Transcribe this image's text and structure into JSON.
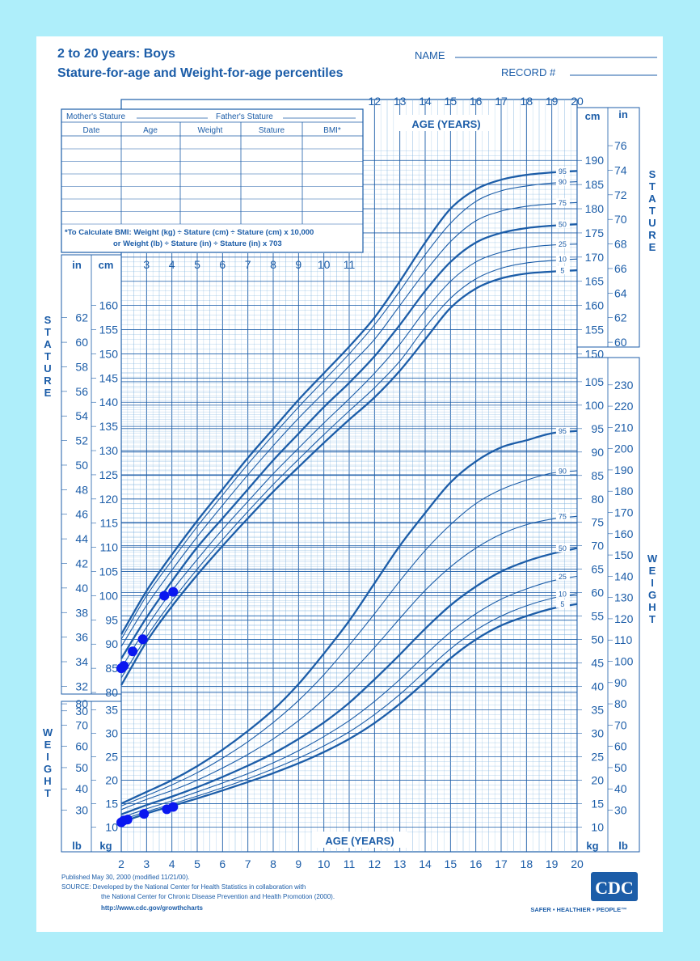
{
  "header": {
    "title_line1": "2 to 20 years: Boys",
    "title_line2": "Stature-for-age and Weight-for-age percentiles",
    "name_label": "NAME",
    "record_label": "RECORD #"
  },
  "record_table": {
    "mothers_stature": "Mother's Stature",
    "fathers_stature": "Father's Stature",
    "columns": [
      "Date",
      "Age",
      "Weight",
      "Stature",
      "BMI*"
    ],
    "bmi_note_line1": "*To Calculate BMI: Weight (kg) ÷ Stature (cm) ÷ Stature (cm) x 10,000",
    "bmi_note_line2": "or Weight (lb) ÷ Stature (in) ÷ Stature (in) x 703"
  },
  "side_labels": {
    "stature": "STATURE",
    "weight": "WEIGHT"
  },
  "footer": {
    "published": "Published May 30, 2000 (modified 11/21/00).",
    "source_line1": "SOURCE: Developed by the National Center for Health Statistics in collaboration with",
    "source_line2": "the National Center for Chronic Disease Prevention and Health Promotion (2000).",
    "url": "http://www.cdc.gov/growthcharts",
    "logo": "CDC",
    "tagline": "SAFER • HEALTHIER • PEOPLE™"
  },
  "colors": {
    "ink": "#1c5da8",
    "grid": "#7fb2dd",
    "points": "#0a17f0",
    "page_border": "#aeeefa"
  },
  "chart_data": [
    {
      "type": "line",
      "name": "stature-for-age",
      "x_axis_label": "AGE (YEARS)",
      "x_range": [
        2,
        20
      ],
      "x_ticks": [
        2,
        3,
        4,
        5,
        6,
        7,
        8,
        9,
        10,
        11,
        12,
        13,
        14,
        15,
        16,
        17,
        18,
        19,
        20
      ],
      "y_unit_left": "cm",
      "y_unit_inch": "in",
      "y_range_cm": [
        77,
        193
      ],
      "cm_ticks": [
        80,
        85,
        90,
        95,
        100,
        105,
        110,
        115,
        120,
        125,
        130,
        135,
        140,
        145,
        150,
        155,
        160,
        165,
        170,
        175,
        180,
        185,
        190
      ],
      "in_ticks": [
        30,
        32,
        34,
        36,
        38,
        40,
        42,
        44,
        46,
        48,
        50,
        52,
        54,
        56,
        58,
        60,
        62,
        64,
        66,
        68,
        70,
        72,
        74,
        76
      ],
      "age_knots": [
        2,
        3,
        4,
        5,
        6,
        7,
        8,
        9,
        10,
        11,
        12,
        13,
        14,
        15,
        16,
        17,
        18,
        19,
        20
      ],
      "series": [
        {
          "name": "95",
          "values": [
            92,
            101,
            108.5,
            115.5,
            122,
            128.5,
            134.5,
            140.5,
            146,
            151.5,
            157.5,
            165,
            173,
            180,
            184,
            186,
            187,
            187.5,
            187.8
          ]
        },
        {
          "name": "90",
          "values": [
            91,
            100,
            107.3,
            114.3,
            120.8,
            127.2,
            133.2,
            139,
            144.5,
            150,
            156,
            163,
            170.5,
            177,
            181.5,
            183.7,
            184.7,
            185.3,
            185.6
          ]
        },
        {
          "name": "75",
          "values": [
            89.5,
            98,
            105.3,
            112.2,
            118.7,
            125,
            131,
            136.7,
            142,
            147.5,
            153,
            160,
            167,
            173.2,
            177.5,
            179.5,
            180.5,
            181,
            181.3
          ]
        },
        {
          "name": "50",
          "values": [
            87,
            95.5,
            103,
            110,
            116,
            122,
            128,
            133.5,
            139,
            144,
            149.5,
            156,
            163,
            169,
            173,
            175,
            176,
            176.5,
            176.8
          ]
        },
        {
          "name": "25",
          "values": [
            85,
            93.5,
            101,
            107.5,
            113.7,
            119.5,
            125.2,
            130.5,
            135.7,
            140.7,
            146,
            152,
            159,
            165,
            169,
            171,
            172,
            172.5,
            172.7
          ]
        },
        {
          "name": "10",
          "values": [
            83,
            91.5,
            98.9,
            105.5,
            111.6,
            117.4,
            123,
            128.2,
            133.3,
            138.2,
            143,
            148.5,
            155.5,
            161.5,
            165.5,
            167.7,
            168.8,
            169.3,
            169.6
          ]
        },
        {
          "name": "5",
          "values": [
            81.5,
            90.5,
            97.8,
            104.3,
            110.3,
            116,
            121.5,
            126.6,
            131.6,
            136.4,
            141,
            146.5,
            153,
            159.5,
            163.5,
            165.6,
            166.6,
            167,
            167.3
          ]
        }
      ],
      "points": [
        {
          "age": 2.0,
          "stature": 85
        },
        {
          "age": 2.1,
          "stature": 85.5
        },
        {
          "age": 2.45,
          "stature": 88.5
        },
        {
          "age": 2.85,
          "stature": 91
        },
        {
          "age": 3.7,
          "stature": 100
        },
        {
          "age": 4.05,
          "stature": 100.8
        }
      ]
    },
    {
      "type": "line",
      "name": "weight-for-age",
      "x_axis_label": "AGE (YEARS)",
      "x_range": [
        2,
        20
      ],
      "x_ticks": [
        2,
        3,
        4,
        5,
        6,
        7,
        8,
        9,
        10,
        11,
        12,
        13,
        14,
        15,
        16,
        17,
        18,
        19,
        20
      ],
      "y_unit_left": "kg",
      "y_unit_lb": "lb",
      "y_range_kg": [
        8,
        108
      ],
      "kg_ticks": [
        10,
        15,
        20,
        25,
        30,
        35,
        40,
        45,
        50,
        55,
        60,
        65,
        70,
        75,
        80,
        85,
        90,
        95,
        100,
        105
      ],
      "lb_ticks": [
        30,
        40,
        50,
        60,
        70,
        80,
        90,
        100,
        110,
        120,
        130,
        140,
        150,
        160,
        170,
        180,
        190,
        200,
        210,
        220,
        230
      ],
      "age_knots": [
        2,
        3,
        4,
        5,
        6,
        7,
        8,
        9,
        10,
        11,
        12,
        13,
        14,
        15,
        16,
        17,
        18,
        19,
        20
      ],
      "series": [
        {
          "name": "95",
          "values": [
            15,
            17.5,
            20,
            23,
            26.5,
            30.5,
            35,
            40.5,
            47,
            54,
            62,
            70,
            77,
            83.5,
            88,
            91,
            92.5,
            94,
            94.5
          ]
        },
        {
          "name": "90",
          "values": [
            14.5,
            16.7,
            19,
            21.6,
            24.7,
            28.2,
            32.3,
            37,
            42.5,
            48.8,
            55.5,
            62.5,
            69,
            74.5,
            79,
            82,
            84,
            85.5,
            86
          ]
        },
        {
          "name": "75",
          "values": [
            13.7,
            15.9,
            17.8,
            20,
            22.6,
            25.5,
            28.8,
            32.7,
            37.3,
            42.5,
            48.3,
            54.5,
            60.5,
            65.5,
            69.5,
            72.5,
            74.5,
            75.7,
            76.3
          ]
        },
        {
          "name": "50",
          "values": [
            12.7,
            14.7,
            16.5,
            18.5,
            20.7,
            23.1,
            25.7,
            28.8,
            32.3,
            36.5,
            41.5,
            46.8,
            52.3,
            57.3,
            61.3,
            64.5,
            66.7,
            68.3,
            69.5
          ]
        },
        {
          "name": "25",
          "values": [
            12,
            13.9,
            15.6,
            17.5,
            19.4,
            21.4,
            23.7,
            26.3,
            29.3,
            32.7,
            36.8,
            41.5,
            46.7,
            51.6,
            55.5,
            58.6,
            60.8,
            62.5,
            63.5
          ]
        },
        {
          "name": "10",
          "values": [
            11.5,
            13.3,
            14.9,
            16.6,
            18.4,
            20.3,
            22.4,
            24.7,
            27.3,
            30.3,
            34,
            38.3,
            43.2,
            48,
            52,
            55,
            57.2,
            58.8,
            59.8
          ]
        },
        {
          "name": "5",
          "values": [
            11,
            12.9,
            14.5,
            16.1,
            17.8,
            19.6,
            21.5,
            23.6,
            26,
            28.8,
            32.2,
            36.3,
            41,
            46,
            50,
            53,
            55,
            56.6,
            57.6
          ]
        }
      ],
      "points": [
        {
          "age": 2.0,
          "weight": 11
        },
        {
          "age": 2.1,
          "weight": 11.4
        },
        {
          "age": 2.25,
          "weight": 11.6
        },
        {
          "age": 2.9,
          "weight": 12.8
        },
        {
          "age": 3.8,
          "weight": 13.8
        },
        {
          "age": 4.05,
          "weight": 14.3
        }
      ]
    }
  ]
}
